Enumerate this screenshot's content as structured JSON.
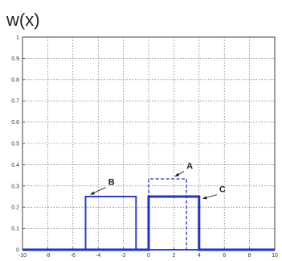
{
  "chart_data": {
    "type": "line",
    "title": "w(x)",
    "xlabel": "",
    "ylabel": "",
    "xlim": [
      -10,
      10
    ],
    "ylim": [
      0,
      1
    ],
    "grid": true,
    "x_ticks": [
      -10,
      -8,
      -6,
      -4,
      -2,
      0,
      2,
      4,
      6,
      8,
      10
    ],
    "x_tick_labels": [
      "-10",
      "-8",
      "-6",
      "-4",
      "-2",
      "0",
      "2",
      "4",
      "6",
      "8",
      "10"
    ],
    "y_ticks": [
      0,
      0.1,
      0.2,
      0.3,
      0.4,
      0.5,
      0.6,
      0.7,
      0.8,
      0.9,
      1
    ],
    "y_tick_labels": [
      "0",
      "0.1",
      "0.2",
      "0.3",
      "0.4",
      "0.5",
      "0.6",
      "0.7",
      "0.8",
      "0.9",
      "1"
    ],
    "series": [
      {
        "name": "A",
        "style": "dashed",
        "color": "#2a3fd6",
        "x": [
          -10,
          0,
          0,
          3,
          3,
          10
        ],
        "y": [
          0,
          0,
          0.333,
          0.333,
          0,
          0
        ]
      },
      {
        "name": "B",
        "style": "solid",
        "color": "#2a3fd6",
        "x": [
          -10,
          -5,
          -5,
          -1,
          -1,
          10
        ],
        "y": [
          0,
          0,
          0.25,
          0.25,
          0,
          0
        ]
      },
      {
        "name": "C",
        "style": "solid-thick",
        "color": "#1f33cc",
        "x": [
          -10,
          0,
          0,
          4,
          4,
          10
        ],
        "y": [
          0,
          0,
          0.25,
          0.25,
          0,
          0
        ]
      }
    ],
    "annotations": [
      {
        "text": "A",
        "x": 2.1,
        "y": 0.345,
        "text_x": 3.0,
        "text_y": 0.38
      },
      {
        "text": "B",
        "x": -4.6,
        "y": 0.26,
        "text_x": -3.2,
        "text_y": 0.305
      },
      {
        "text": "C",
        "x": 4.3,
        "y": 0.24,
        "text_x": 5.6,
        "text_y": 0.27
      }
    ]
  }
}
